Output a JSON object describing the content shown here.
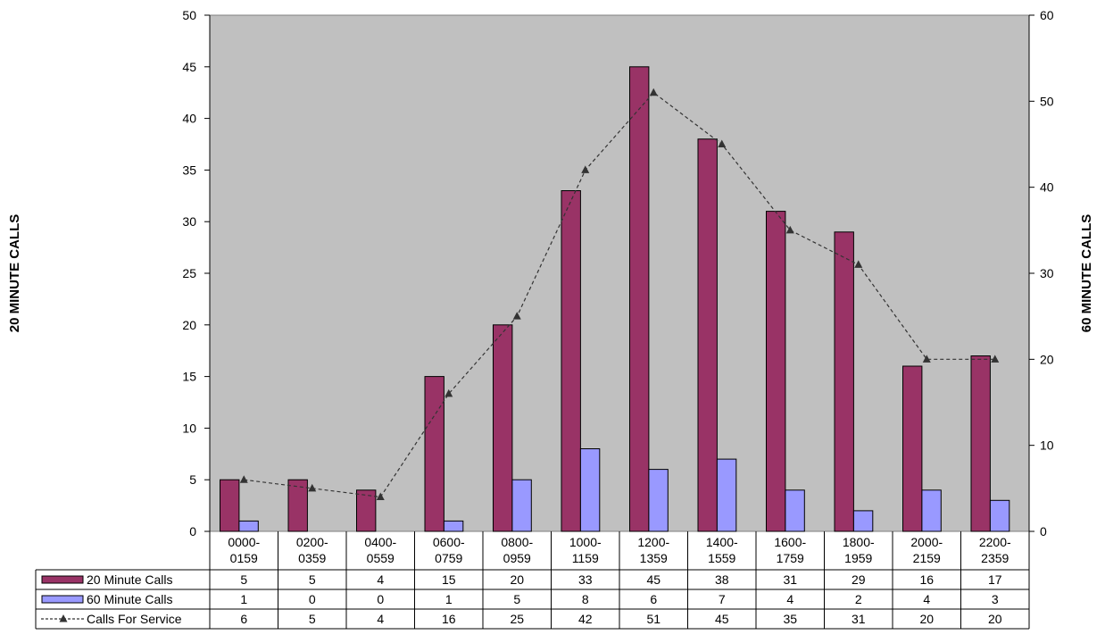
{
  "chart_data": {
    "type": "bar",
    "categories": [
      [
        "0000-",
        "0159"
      ],
      [
        "0200-",
        "0359"
      ],
      [
        "0400-",
        "0559"
      ],
      [
        "0600-",
        "0759"
      ],
      [
        "0800-",
        "0959"
      ],
      [
        "1000-",
        "1159"
      ],
      [
        "1200-",
        "1359"
      ],
      [
        "1400-",
        "1559"
      ],
      [
        "1600-",
        "1759"
      ],
      [
        "1800-",
        "1959"
      ],
      [
        "2000-",
        "2159"
      ],
      [
        "2200-",
        "2359"
      ]
    ],
    "series": [
      {
        "name": "20 Minute Calls",
        "type": "bar",
        "axis": "left",
        "color": "#993366",
        "values": [
          5,
          5,
          4,
          15,
          20,
          33,
          45,
          38,
          31,
          29,
          16,
          17
        ]
      },
      {
        "name": "60 Minute Calls",
        "type": "bar",
        "axis": "left",
        "color": "#9999FF",
        "values": [
          1,
          0,
          0,
          1,
          5,
          8,
          6,
          7,
          4,
          2,
          4,
          3
        ]
      },
      {
        "name": "Calls For Service",
        "type": "line",
        "axis": "right",
        "color": "#333333",
        "values": [
          6,
          5,
          4,
          16,
          25,
          42,
          51,
          45,
          35,
          31,
          20,
          20
        ]
      }
    ],
    "ylabel": "20 MINUTE CALLS",
    "y2label": "60 MINUTE CALLS",
    "ylim": [
      0,
      50
    ],
    "y2lim": [
      0,
      60
    ],
    "yticks": [
      0,
      5,
      10,
      15,
      20,
      25,
      30,
      35,
      40,
      45,
      50
    ],
    "y2ticks": [
      0,
      10,
      20,
      30,
      40,
      50,
      60
    ],
    "plot_background": "#C0C0C0",
    "grid": false,
    "legend": "data-table"
  }
}
